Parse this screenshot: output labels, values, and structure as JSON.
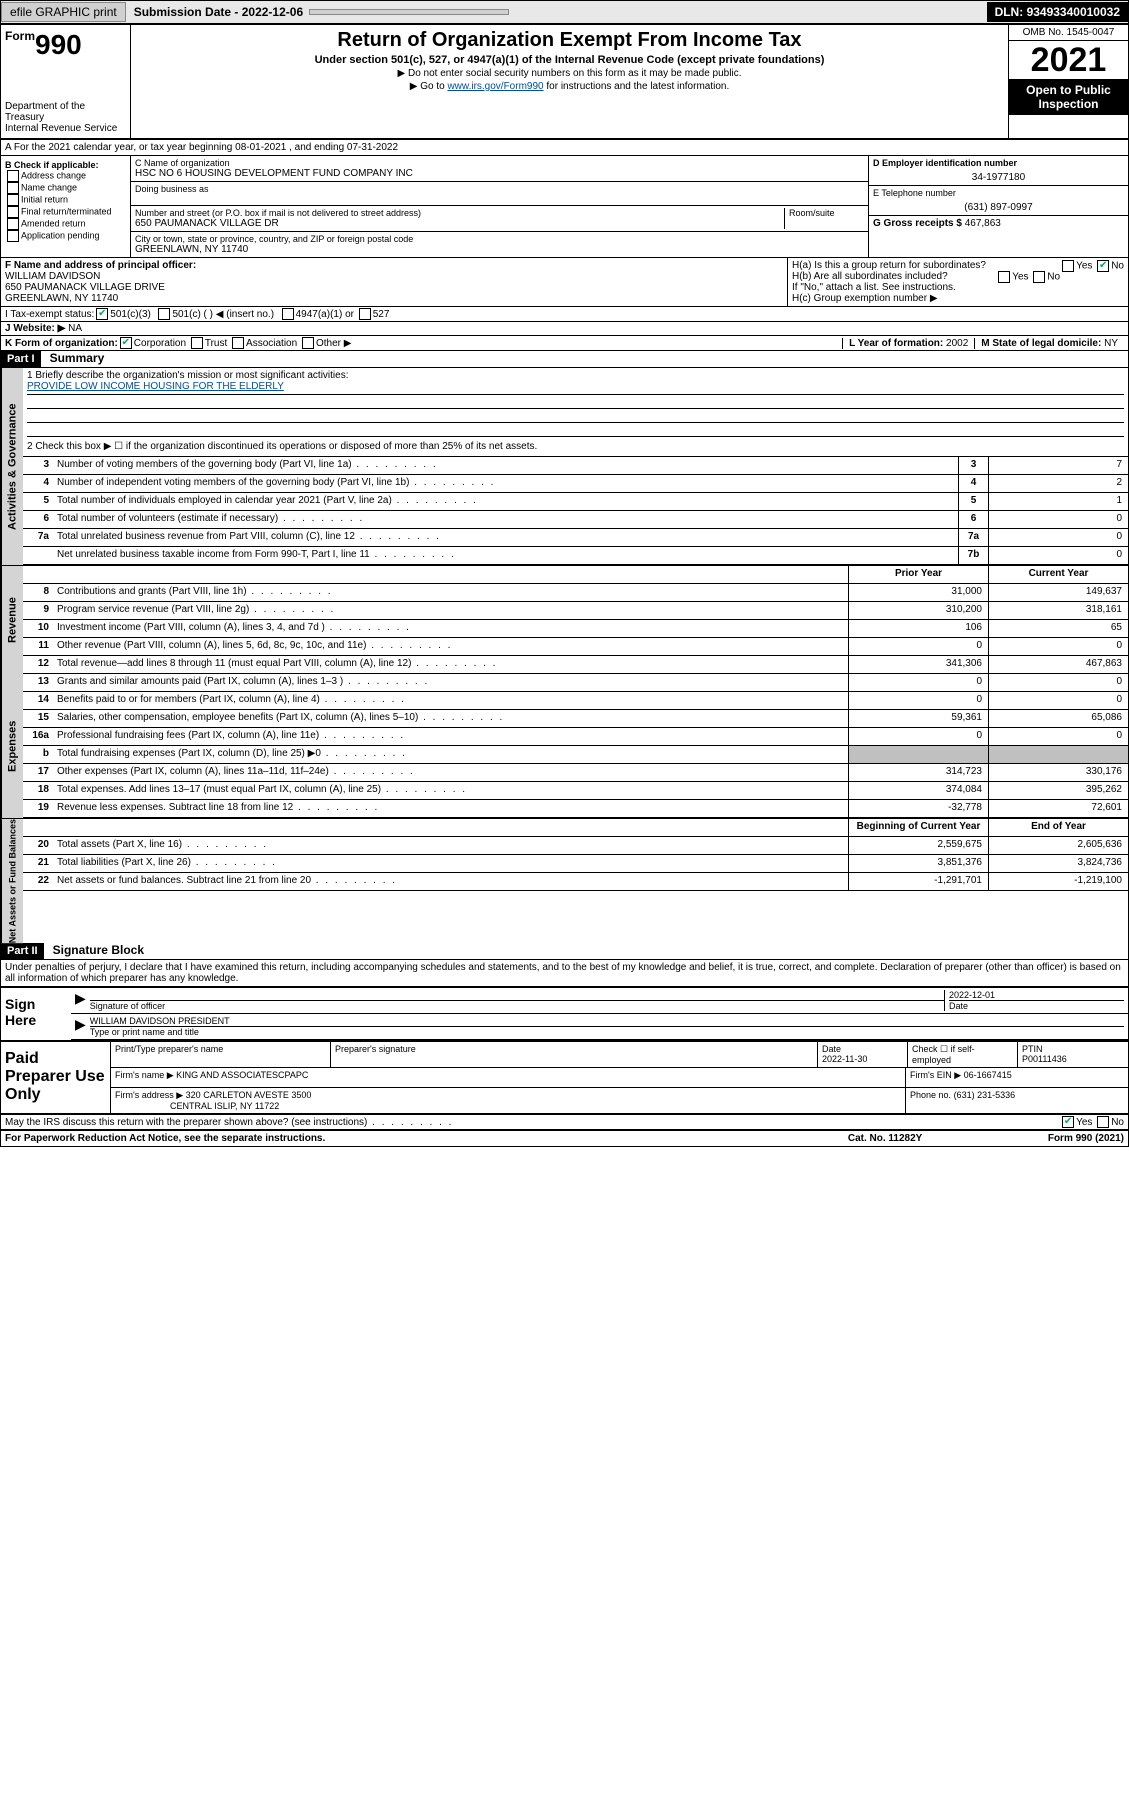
{
  "toolbar": {
    "efile": "efile GRAPHIC print",
    "subdate_lbl": "Submission Date - ",
    "subdate": "2022-12-06",
    "dln_lbl": "DLN: ",
    "dln": "93493340010032"
  },
  "header": {
    "form_prefix": "Form",
    "form_no": "990",
    "dept": "Department of the Treasury",
    "irs": "Internal Revenue Service",
    "title": "Return of Organization Exempt From Income Tax",
    "sub": "Under section 501(c), 527, or 4947(a)(1) of the Internal Revenue Code (except private foundations)",
    "note1": "▶ Do not enter social security numbers on this form as it may be made public.",
    "note2_pre": "▶ Go to ",
    "note2_link": "www.irs.gov/Form990",
    "note2_post": " for instructions and the latest information.",
    "omb": "OMB No. 1545-0047",
    "year": "2021",
    "inspect": "Open to Public Inspection"
  },
  "a": {
    "text": "A For the 2021 calendar year, or tax year beginning 08-01-2021   , and ending 07-31-2022"
  },
  "b": {
    "lbl": "B Check if applicable:",
    "opts": [
      "Address change",
      "Name change",
      "Initial return",
      "Final return/terminated",
      "Amended return",
      "Application pending"
    ]
  },
  "c": {
    "name_lbl": "C Name of organization",
    "name": "HSC NO 6 HOUSING DEVELOPMENT FUND COMPANY INC",
    "dba_lbl": "Doing business as",
    "addr_lbl": "Number and street (or P.O. box if mail is not delivered to street address)",
    "room_lbl": "Room/suite",
    "addr": "650 PAUMANACK VILLAGE DR",
    "city_lbl": "City or town, state or province, country, and ZIP or foreign postal code",
    "city": "GREENLAWN, NY  11740"
  },
  "d": {
    "lbl": "D Employer identification number",
    "val": "34-1977180"
  },
  "e": {
    "lbl": "E Telephone number",
    "val": "(631) 897-0997"
  },
  "g": {
    "lbl": "G Gross receipts $",
    "val": "467,863"
  },
  "f": {
    "lbl": "F Name and address of principal officer:",
    "name": "WILLIAM DAVIDSON",
    "addr1": "650 PAUMANACK VILLAGE DRIVE",
    "addr2": "GREENLAWN, NY  11740"
  },
  "h": {
    "a_lbl": "H(a)  Is this a group return for subordinates?",
    "a_yes": "Yes",
    "a_no": "No",
    "b_lbl": "H(b)  Are all subordinates included?",
    "b_note": "If \"No,\" attach a list. See instructions.",
    "c_lbl": "H(c)  Group exemption number ▶"
  },
  "i": {
    "lbl": "I   Tax-exempt status:",
    "o1": "501(c)(3)",
    "o2": "501(c) (  ) ◀ (insert no.)",
    "o3": "4947(a)(1) or",
    "o4": "527"
  },
  "j": {
    "lbl": "J   Website: ▶",
    "val": "NA"
  },
  "k": {
    "lbl": "K Form of organization:",
    "o1": "Corporation",
    "o2": "Trust",
    "o3": "Association",
    "o4": "Other ▶"
  },
  "l": {
    "lbl": "L Year of formation:",
    "val": "2002"
  },
  "m": {
    "lbl": "M State of legal domicile:",
    "val": "NY"
  },
  "part1": {
    "hdr": "Part I",
    "title": "Summary",
    "q1": "1  Briefly describe the organization's mission or most significant activities:",
    "mission": "PROVIDE LOW INCOME HOUSING FOR THE ELDERLY",
    "q2": "2   Check this box ▶ ☐  if the organization discontinued its operations or disposed of more than 25% of its net assets.",
    "rows_gov": [
      {
        "n": "3",
        "t": "Number of voting members of the governing body (Part VI, line 1a)",
        "box": "3",
        "v": "7"
      },
      {
        "n": "4",
        "t": "Number of independent voting members of the governing body (Part VI, line 1b)",
        "box": "4",
        "v": "2"
      },
      {
        "n": "5",
        "t": "Total number of individuals employed in calendar year 2021 (Part V, line 2a)",
        "box": "5",
        "v": "1"
      },
      {
        "n": "6",
        "t": "Total number of volunteers (estimate if necessary)",
        "box": "6",
        "v": "0"
      },
      {
        "n": "7a",
        "t": "Total unrelated business revenue from Part VIII, column (C), line 12",
        "box": "7a",
        "v": "0"
      },
      {
        "n": "",
        "t": "Net unrelated business taxable income from Form 990-T, Part I, line 11",
        "box": "7b",
        "v": "0"
      }
    ],
    "col_prior": "Prior Year",
    "col_curr": "Current Year",
    "rows_rev": [
      {
        "n": "8",
        "t": "Contributions and grants (Part VIII, line 1h)",
        "p": "31,000",
        "c": "149,637"
      },
      {
        "n": "9",
        "t": "Program service revenue (Part VIII, line 2g)",
        "p": "310,200",
        "c": "318,161"
      },
      {
        "n": "10",
        "t": "Investment income (Part VIII, column (A), lines 3, 4, and 7d )",
        "p": "106",
        "c": "65"
      },
      {
        "n": "11",
        "t": "Other revenue (Part VIII, column (A), lines 5, 6d, 8c, 9c, 10c, and 11e)",
        "p": "0",
        "c": "0"
      },
      {
        "n": "12",
        "t": "Total revenue—add lines 8 through 11 (must equal Part VIII, column (A), line 12)",
        "p": "341,306",
        "c": "467,863"
      }
    ],
    "rows_exp": [
      {
        "n": "13",
        "t": "Grants and similar amounts paid (Part IX, column (A), lines 1–3 )",
        "p": "0",
        "c": "0"
      },
      {
        "n": "14",
        "t": "Benefits paid to or for members (Part IX, column (A), line 4)",
        "p": "0",
        "c": "0"
      },
      {
        "n": "15",
        "t": "Salaries, other compensation, employee benefits (Part IX, column (A), lines 5–10)",
        "p": "59,361",
        "c": "65,086"
      },
      {
        "n": "16a",
        "t": "Professional fundraising fees (Part IX, column (A), line 11e)",
        "p": "0",
        "c": "0"
      },
      {
        "n": "b",
        "t": "Total fundraising expenses (Part IX, column (D), line 25) ▶0",
        "p": "shade",
        "c": "shade"
      },
      {
        "n": "17",
        "t": "Other expenses (Part IX, column (A), lines 11a–11d, 11f–24e)",
        "p": "314,723",
        "c": "330,176"
      },
      {
        "n": "18",
        "t": "Total expenses. Add lines 13–17 (must equal Part IX, column (A), line 25)",
        "p": "374,084",
        "c": "395,262"
      },
      {
        "n": "19",
        "t": "Revenue less expenses. Subtract line 18 from line 12",
        "p": "-32,778",
        "c": "72,601"
      }
    ],
    "col_begin": "Beginning of Current Year",
    "col_end": "End of Year",
    "rows_net": [
      {
        "n": "20",
        "t": "Total assets (Part X, line 16)",
        "p": "2,559,675",
        "c": "2,605,636"
      },
      {
        "n": "21",
        "t": "Total liabilities (Part X, line 26)",
        "p": "3,851,376",
        "c": "3,824,736"
      },
      {
        "n": "22",
        "t": "Net assets or fund balances. Subtract line 21 from line 20",
        "p": "-1,291,701",
        "c": "-1,219,100"
      }
    ],
    "side_gov": "Activities & Governance",
    "side_rev": "Revenue",
    "side_exp": "Expenses",
    "side_net": "Net Assets or Fund Balances"
  },
  "part2": {
    "hdr": "Part II",
    "title": "Signature Block",
    "decl": "Under penalties of perjury, I declare that I have examined this return, including accompanying schedules and statements, and to the best of my knowledge and belief, it is true, correct, and complete. Declaration of preparer (other than officer) is based on all information of which preparer has any knowledge.",
    "sign_here": "Sign Here",
    "sig_lbl": "Signature of officer",
    "date_lbl": "Date",
    "sig_date": "2022-12-01",
    "officer": "WILLIAM DAVIDSON  PRESIDENT",
    "officer_lbl": "Type or print name and title",
    "paid": "Paid Preparer Use Only",
    "prep_name_lbl": "Print/Type preparer's name",
    "prep_sig_lbl": "Preparer's signature",
    "prep_date_lbl": "Date",
    "prep_date": "2022-11-30",
    "self_lbl": "Check ☐ if self-employed",
    "ptin_lbl": "PTIN",
    "ptin": "P00111436",
    "firm_name_lbl": "Firm's name    ▶",
    "firm_name": "KING AND ASSOCIATESCPAPC",
    "firm_ein_lbl": "Firm's EIN ▶",
    "firm_ein": "06-1667415",
    "firm_addr_lbl": "Firm's address ▶",
    "firm_addr1": "320 CARLETON AVESTE 3500",
    "firm_addr2": "CENTRAL ISLIP, NY  11722",
    "phone_lbl": "Phone no.",
    "phone": "(631) 231-5336",
    "discuss": "May the IRS discuss this return with the preparer shown above? (see instructions)",
    "d_yes": "Yes",
    "d_no": "No"
  },
  "footer": {
    "pra": "For Paperwork Reduction Act Notice, see the separate instructions.",
    "cat": "Cat. No. 11282Y",
    "form": "Form 990 (2021)"
  }
}
